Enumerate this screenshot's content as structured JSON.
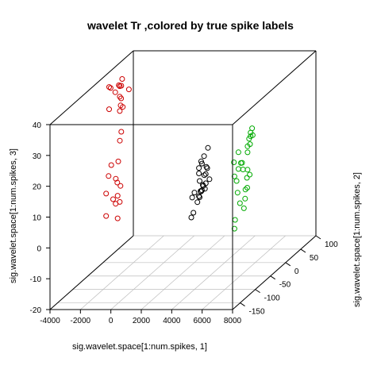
{
  "chart_data": {
    "type": "scatter",
    "title": "wavelet Tr ,colored by true spike labels",
    "xlabel": "sig.wavelet.space[1:num.spikes, 1]",
    "ylabel": "sig.wavelet.space[1:num.spikes, 2]",
    "zlabel": "sig.wavelet.space[1:num.spikes, 3]",
    "x_ticks": [
      "-4000",
      "-2000",
      "0",
      "2000",
      "4000",
      "6000",
      "8000"
    ],
    "y_ticks": [
      "-150",
      "-100",
      "-50",
      "0",
      "50",
      "100"
    ],
    "z_ticks": [
      "-20",
      "-10",
      "0",
      "10",
      "20",
      "30",
      "40"
    ],
    "xlim": [
      -4000,
      8000
    ],
    "ylim": [
      -175,
      100
    ],
    "zlim": [
      -20,
      40
    ],
    "grid": "xy floor only",
    "series": [
      {
        "color": "#cc0000",
        "points": [
          [
            -3200,
            -20,
            38.7
          ],
          [
            -3100,
            18,
            38.0
          ],
          [
            -3300,
            -10,
            37.5
          ],
          [
            -3000,
            5,
            36.8
          ],
          [
            -3200,
            12,
            36.5
          ],
          [
            -3100,
            -5,
            35.7
          ],
          [
            -3300,
            25,
            35.2
          ],
          [
            -2600,
            15,
            34.9
          ],
          [
            -2700,
            -10,
            34.7
          ],
          [
            -3050,
            12,
            32.2
          ],
          [
            -3200,
            -20,
            31.5
          ],
          [
            -3000,
            8,
            30.3
          ],
          [
            -2800,
            -5,
            29.6
          ],
          [
            -3000,
            15,
            29.2
          ],
          [
            -2200,
            -35,
            22.6
          ],
          [
            -2900,
            5,
            22.0
          ],
          [
            -3100,
            -18,
            13.2
          ],
          [
            -3000,
            0,
            12.8
          ],
          [
            -3200,
            -22,
            10.0
          ],
          [
            -3000,
            -8,
            7.9
          ],
          [
            -3100,
            2,
            5.8
          ],
          [
            -3200,
            -30,
            5.0
          ],
          [
            -3050,
            10,
            4.0
          ],
          [
            -3100,
            -12,
            1.6
          ],
          [
            -3200,
            8,
            1.0
          ],
          [
            -3050,
            -6,
            -0.4
          ],
          [
            -3100,
            10,
            -1.2
          ],
          [
            -3000,
            -40,
            -1.4
          ],
          [
            -2800,
            -12,
            -4.6
          ]
        ]
      },
      {
        "color": "#000000",
        "points": [
          [
            2300,
            30,
            14.6
          ],
          [
            2400,
            12,
            13.5
          ],
          [
            2350,
            5,
            12.4
          ],
          [
            2100,
            10,
            9.8
          ],
          [
            2200,
            15,
            10.8
          ],
          [
            2400,
            20,
            9.3
          ],
          [
            2200,
            5,
            8.5
          ],
          [
            2450,
            15,
            7.4
          ],
          [
            2250,
            30,
            8.0
          ],
          [
            2300,
            18,
            6.8
          ],
          [
            2150,
            10,
            5.6
          ],
          [
            2400,
            8,
            4.5
          ],
          [
            2300,
            35,
            4.0
          ],
          [
            2350,
            12,
            3.8
          ],
          [
            2200,
            28,
            3.3
          ],
          [
            2400,
            5,
            3.0
          ],
          [
            2050,
            -2,
            2.9
          ],
          [
            2250,
            8,
            2.5
          ],
          [
            2300,
            20,
            2.2
          ],
          [
            2150,
            15,
            1.8
          ],
          [
            2350,
            0,
            1.2
          ],
          [
            2100,
            10,
            0.7
          ],
          [
            2200,
            0,
            -0.4
          ],
          [
            1700,
            8,
            0.4
          ],
          [
            1900,
            2,
            -4.0
          ],
          [
            2000,
            -10,
            -4.5
          ]
        ]
      },
      {
        "color": "#00aa00",
        "points": [
          [
            5600,
            10,
            22.7
          ],
          [
            5800,
            -5,
            21.4
          ],
          [
            5500,
            10,
            21.3
          ],
          [
            5700,
            -5,
            20.6
          ],
          [
            5600,
            12,
            20.3
          ],
          [
            5700,
            -2,
            18.6
          ],
          [
            5400,
            5,
            17.3
          ],
          [
            5600,
            -5,
            16.2
          ],
          [
            4900,
            0,
            15.8
          ],
          [
            4800,
            -10,
            13.4
          ],
          [
            5100,
            2,
            12.2
          ],
          [
            4900,
            8,
            11.6
          ],
          [
            5000,
            -5,
            10.8
          ],
          [
            5200,
            0,
            10.2
          ],
          [
            5400,
            5,
            9.7
          ],
          [
            5700,
            -3,
            8.8
          ],
          [
            4600,
            2,
            7.8
          ],
          [
            4900,
            -6,
            7.0
          ],
          [
            5300,
            8,
            6.8
          ],
          [
            5600,
            -6,
            4.8
          ],
          [
            5000,
            -8,
            3.4
          ],
          [
            5200,
            8,
            3.0
          ],
          [
            5400,
            -3,
            1.0
          ],
          [
            5100,
            -5,
            -0.3
          ],
          [
            5300,
            -2,
            -2.2
          ],
          [
            4600,
            4,
            -6.5
          ],
          [
            4800,
            -8,
            -8.3
          ]
        ]
      }
    ]
  }
}
